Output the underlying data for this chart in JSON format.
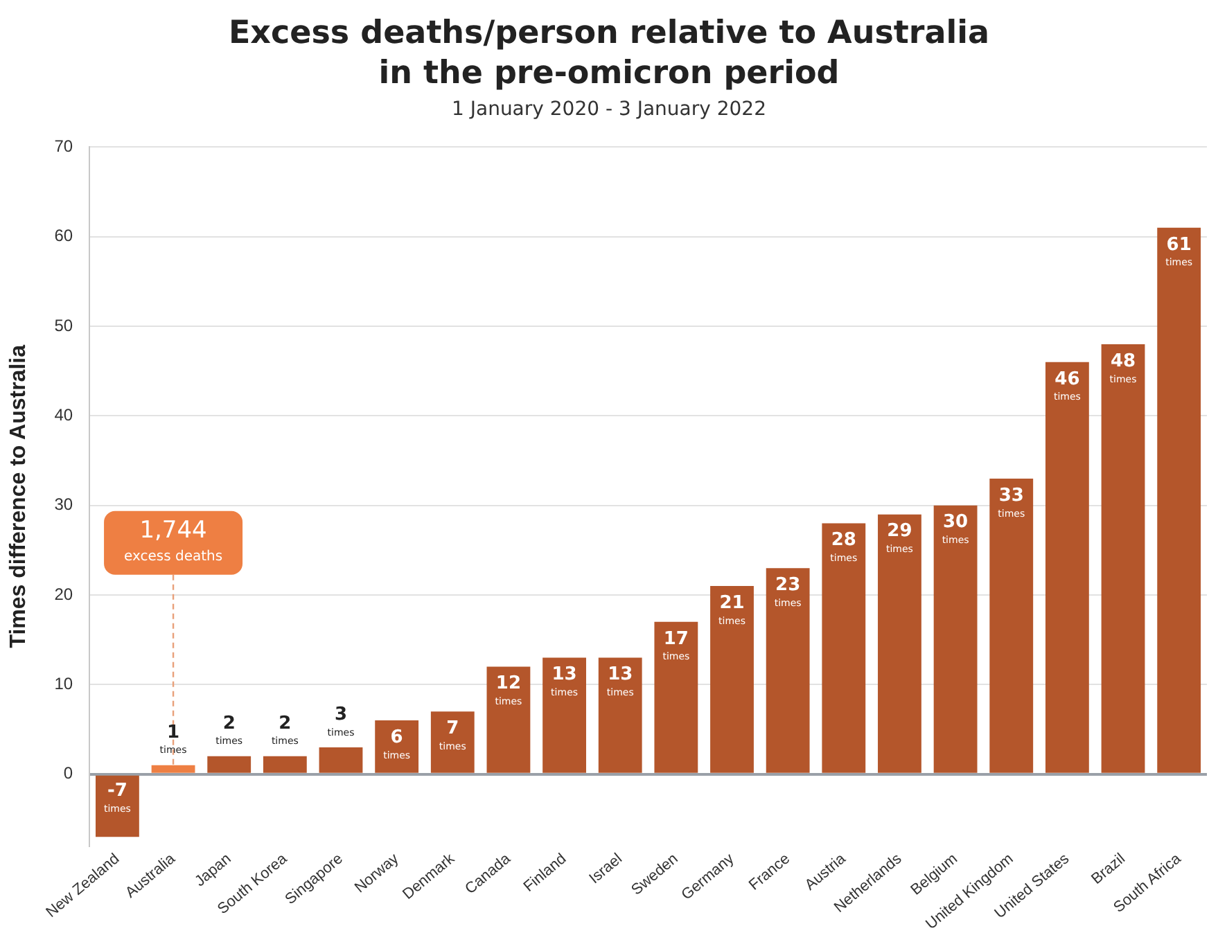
{
  "chart_data": {
    "type": "bar",
    "title": "Excess deaths/person relative to Australia in the pre-omicron period",
    "subtitle": "1 January 2020 - 3 January 2022",
    "ylabel": "Times difference to Australia",
    "categories": [
      "New Zealand",
      "Australia",
      "Japan",
      "South Korea",
      "Singapore",
      "Norway",
      "Denmark",
      "Canada",
      "Finland",
      "Israel",
      "Sweden",
      "Germany",
      "France",
      "Austria",
      "Netherlands",
      "Belgium",
      "United Kingdom",
      "United States",
      "Brazil",
      "South Africa"
    ],
    "values": [
      -7,
      1,
      2,
      2,
      3,
      6,
      7,
      12,
      13,
      13,
      17,
      21,
      23,
      28,
      29,
      30,
      33,
      46,
      48,
      61
    ],
    "colors": [
      "#b4562b",
      "#ee7f43",
      "#b4562b",
      "#b4562b",
      "#b4562b",
      "#b4562b",
      "#b4562b",
      "#b4562b",
      "#b4562b",
      "#b4562b",
      "#b4562b",
      "#b4562b",
      "#b4562b",
      "#b4562b",
      "#b4562b",
      "#b4562b",
      "#b4562b",
      "#b4562b",
      "#b4562b",
      "#b4562b"
    ],
    "value_labels": [
      "-7 times",
      "1 times",
      "2 times",
      "2 times",
      "3 times",
      "6 times",
      "7 times",
      "12 times",
      "13 times",
      "13 times",
      "17 times",
      "21 times",
      "23 times",
      "28 times",
      "29 times",
      "30 times",
      "33 times",
      "46 times",
      "48 times",
      "61 times"
    ],
    "annotations": [
      {
        "text": "1,744 excess deaths",
        "x": "Australia",
        "y": 1
      }
    ],
    "ylim": [
      -8,
      70
    ],
    "yticks": [
      0,
      10,
      20,
      30,
      40,
      50,
      60,
      70
    ],
    "grid": "y",
    "legend": false
  }
}
